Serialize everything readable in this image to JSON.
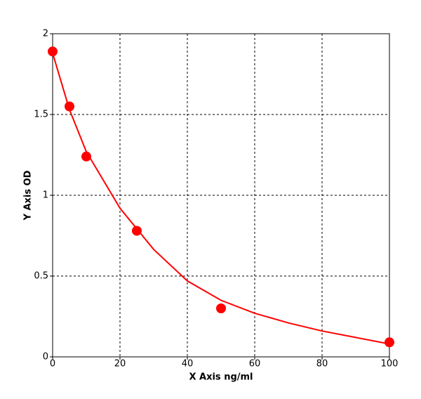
{
  "chart_data": {
    "type": "scatter",
    "xlabel": "X Axis ng/ml",
    "ylabel": "Y Axis OD",
    "xlim": [
      0,
      100
    ],
    "ylim": [
      0,
      2
    ],
    "xticks": [
      0,
      20,
      40,
      60,
      80,
      100
    ],
    "yticks": [
      0,
      0.5,
      1,
      1.5,
      2
    ],
    "grid": true,
    "series": [
      {
        "type": "line",
        "color": "#ff0000",
        "x": [
          0,
          5,
          10,
          20,
          30,
          40,
          50,
          60,
          70,
          80,
          90,
          100
        ],
        "values": [
          1.88,
          1.53,
          1.27,
          0.92,
          0.665,
          0.47,
          0.35,
          0.27,
          0.21,
          0.16,
          0.12,
          0.08
        ]
      },
      {
        "type": "scatter",
        "color": "#ff0000",
        "x": [
          0,
          5,
          10,
          25,
          50,
          100
        ],
        "values": [
          1.89,
          1.55,
          1.24,
          0.78,
          0.3,
          0.09
        ]
      }
    ]
  }
}
